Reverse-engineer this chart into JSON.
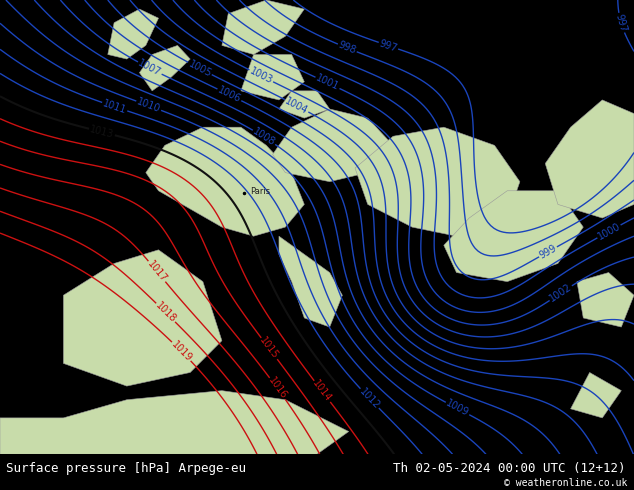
{
  "title_left": "Surface pressure [hPa] Arpege-eu",
  "title_right": "Th 02-05-2024 00:00 UTC (12+12)",
  "copyright": "© weatheronline.co.uk",
  "bg_ocean": "#d8dce8",
  "bg_land_green": "#c8dcaa",
  "bg_land_red": "#e8d0a0",
  "border_color": "#aaaaaa",
  "footer_bg": "#000000",
  "footer_text_color": "#ffffff",
  "blue_color": "#1a44bb",
  "red_color": "#cc1111",
  "black_color": "#111111",
  "label_fontsize": 7,
  "footer_fontsize": 9,
  "figsize": [
    6.34,
    4.9
  ],
  "dpi": 100,
  "contour_levels": [
    997,
    998,
    999,
    1000,
    1001,
    1002,
    1003,
    1004,
    1005,
    1006,
    1007,
    1008,
    1009,
    1010,
    1011,
    1012,
    1013,
    1014,
    1015,
    1016,
    1017,
    1018,
    1019
  ],
  "blue_max": 1012,
  "black_min": 1013,
  "black_max": 1013,
  "red_min": 1014
}
